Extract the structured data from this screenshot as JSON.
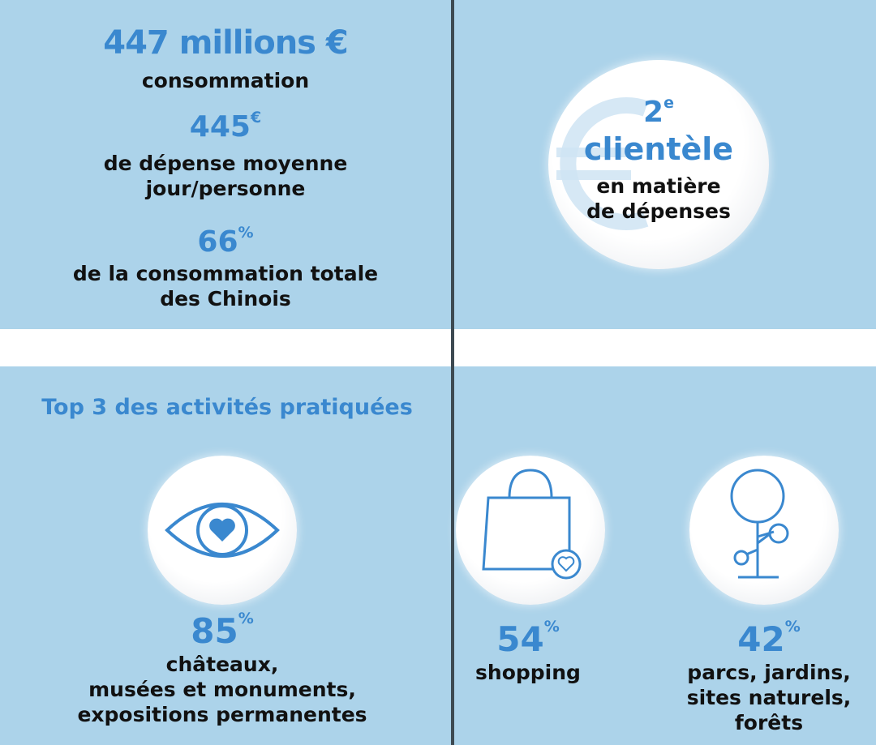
{
  "stats": {
    "consumption_value": "447 millions €",
    "consumption_label": "consommation",
    "avg_value": "445",
    "avg_unit": "€",
    "avg_label_1": "de dépense moyenne",
    "avg_label_2": "jour/personne",
    "share_value": "66",
    "share_unit": "%",
    "share_label_1": "de la consommation totale",
    "share_label_2": "des Chinois"
  },
  "rank": {
    "number": "2",
    "ordinal": "e",
    "title": "clientèle",
    "label_1": "en matière",
    "label_2": "de dépenses",
    "icon": "euro-icon"
  },
  "activities": {
    "heading": "Top 3 des activités pratiquées",
    "items": [
      {
        "value": "85",
        "unit": "%",
        "lines": [
          "châteaux,",
          "musées et monuments,",
          "expositions permanentes"
        ],
        "icon": "eye-heart-icon"
      },
      {
        "value": "54",
        "unit": "%",
        "lines": [
          "shopping"
        ],
        "icon": "shopping-bag-icon"
      },
      {
        "value": "42",
        "unit": "%",
        "lines": [
          "parcs, jardins,",
          "sites naturels,",
          "forêts"
        ],
        "icon": "tree-icon"
      }
    ]
  },
  "colors": {
    "panel": "#acd3ea",
    "accent": "#3a88cf",
    "text": "#111111"
  }
}
